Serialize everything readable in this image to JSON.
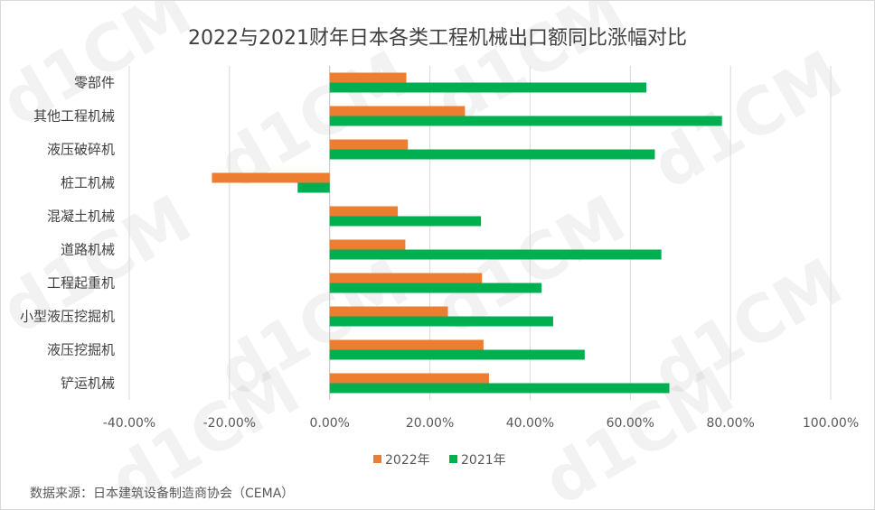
{
  "chart_data": {
    "type": "bar",
    "orientation": "horizontal",
    "title": "2022与2021财年日本各类工程机械出口额同比涨幅对比",
    "categories": [
      "零部件",
      "其他工程机械",
      "液压破碎机",
      "桩工机械",
      "混凝土机械",
      "道路机械",
      "工程起重机",
      "小型液压挖掘机",
      "液压挖掘机",
      "铲运机械"
    ],
    "series": [
      {
        "name": "2022年",
        "color": "#ED7D31",
        "values": [
          15.3,
          27.0,
          15.6,
          -23.5,
          13.6,
          15.1,
          30.4,
          23.6,
          30.7,
          31.8
        ]
      },
      {
        "name": "2021年",
        "color": "#00B050",
        "values": [
          63.2,
          78.3,
          64.9,
          -6.4,
          30.2,
          66.2,
          42.3,
          44.6,
          50.9,
          67.8
        ]
      }
    ],
    "xlim": [
      -40,
      100
    ],
    "xticks": [
      "-40.00%",
      "-20.00%",
      "0.00%",
      "20.00%",
      "40.00%",
      "60.00%",
      "80.00%",
      "100.00%"
    ],
    "grid": true,
    "legend_position": "bottom",
    "source": "数据来源：日本建筑设备制造商协会（CEMA）",
    "watermark": "d1CM"
  }
}
